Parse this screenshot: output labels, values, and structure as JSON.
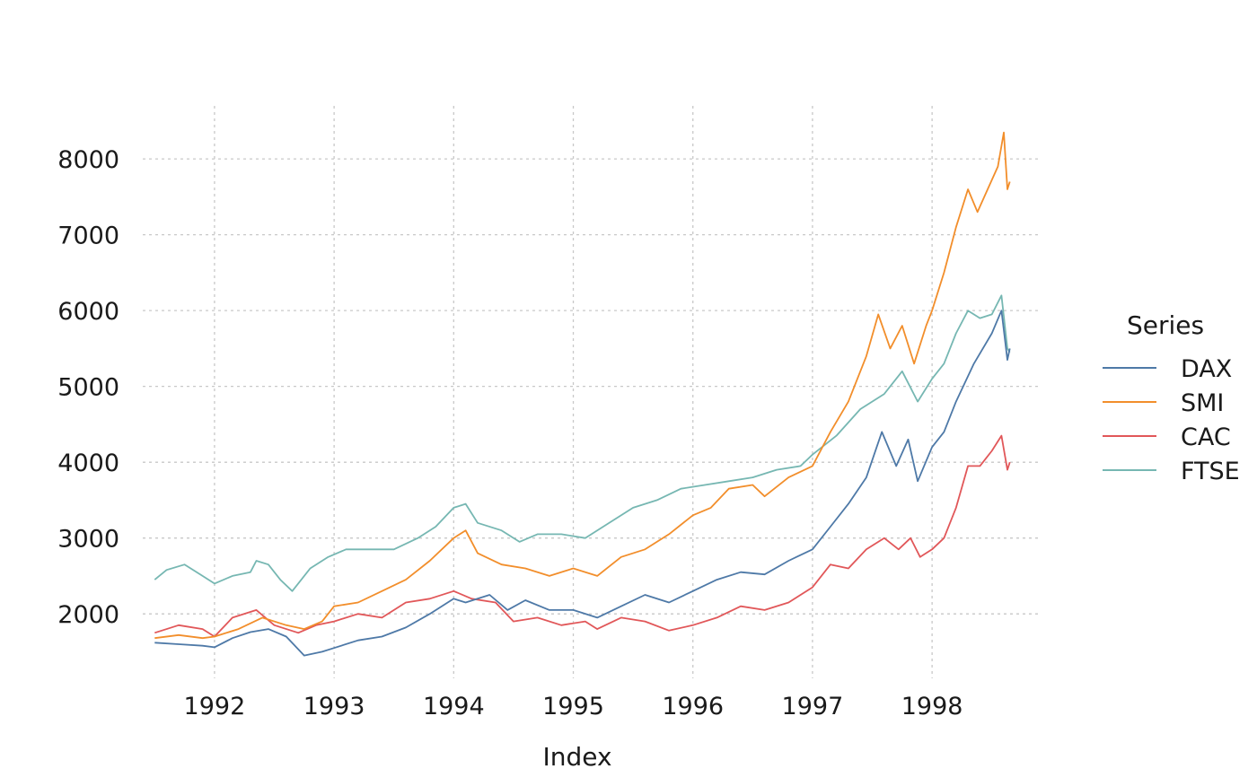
{
  "chart_data": {
    "type": "line",
    "title": "",
    "xlabel": "Index",
    "ylabel": "",
    "xlim": [
      1991.4,
      1998.9
    ],
    "ylim": [
      1150,
      8700
    ],
    "x_ticks": [
      1992,
      1993,
      1994,
      1995,
      1996,
      1997,
      1998
    ],
    "x_tick_labels": [
      "1992",
      "1993",
      "1994",
      "1995",
      "1996",
      "1997",
      "1998"
    ],
    "y_ticks": [
      2000,
      3000,
      4000,
      5000,
      6000,
      7000,
      8000
    ],
    "y_tick_labels": [
      "2000",
      "3000",
      "4000",
      "5000",
      "6000",
      "7000",
      "8000"
    ],
    "grid": true,
    "legend": {
      "title": "Series",
      "position": "right"
    },
    "series": [
      {
        "name": "DAX",
        "color": "#4e79a7",
        "points": [
          [
            1991.5,
            1620
          ],
          [
            1991.7,
            1600
          ],
          [
            1991.9,
            1580
          ],
          [
            1992.0,
            1560
          ],
          [
            1992.15,
            1680
          ],
          [
            1992.3,
            1760
          ],
          [
            1992.45,
            1800
          ],
          [
            1992.6,
            1700
          ],
          [
            1992.75,
            1450
          ],
          [
            1992.9,
            1500
          ],
          [
            1993.0,
            1550
          ],
          [
            1993.2,
            1650
          ],
          [
            1993.4,
            1700
          ],
          [
            1993.6,
            1820
          ],
          [
            1993.8,
            2000
          ],
          [
            1994.0,
            2200
          ],
          [
            1994.1,
            2150
          ],
          [
            1994.3,
            2250
          ],
          [
            1994.45,
            2050
          ],
          [
            1994.6,
            2180
          ],
          [
            1994.8,
            2050
          ],
          [
            1995.0,
            2050
          ],
          [
            1995.2,
            1950
          ],
          [
            1995.4,
            2100
          ],
          [
            1995.6,
            2250
          ],
          [
            1995.8,
            2150
          ],
          [
            1996.0,
            2300
          ],
          [
            1996.2,
            2450
          ],
          [
            1996.4,
            2550
          ],
          [
            1996.6,
            2520
          ],
          [
            1996.8,
            2700
          ],
          [
            1997.0,
            2850
          ],
          [
            1997.15,
            3150
          ],
          [
            1997.3,
            3450
          ],
          [
            1997.45,
            3800
          ],
          [
            1997.58,
            4400
          ],
          [
            1997.7,
            3950
          ],
          [
            1997.8,
            4300
          ],
          [
            1997.88,
            3750
          ],
          [
            1998.0,
            4200
          ],
          [
            1998.1,
            4400
          ],
          [
            1998.2,
            4800
          ],
          [
            1998.35,
            5300
          ],
          [
            1998.5,
            5700
          ],
          [
            1998.58,
            6000
          ],
          [
            1998.63,
            5350
          ],
          [
            1998.65,
            5500
          ]
        ]
      },
      {
        "name": "SMI",
        "color": "#f28e2b",
        "points": [
          [
            1991.5,
            1680
          ],
          [
            1991.7,
            1720
          ],
          [
            1991.9,
            1680
          ],
          [
            1992.0,
            1700
          ],
          [
            1992.2,
            1800
          ],
          [
            1992.4,
            1950
          ],
          [
            1992.6,
            1850
          ],
          [
            1992.75,
            1800
          ],
          [
            1992.9,
            1900
          ],
          [
            1993.0,
            2100
          ],
          [
            1993.2,
            2150
          ],
          [
            1993.4,
            2300
          ],
          [
            1993.6,
            2450
          ],
          [
            1993.8,
            2700
          ],
          [
            1994.0,
            3000
          ],
          [
            1994.1,
            3100
          ],
          [
            1994.2,
            2800
          ],
          [
            1994.4,
            2650
          ],
          [
            1994.6,
            2600
          ],
          [
            1994.8,
            2500
          ],
          [
            1995.0,
            2600
          ],
          [
            1995.2,
            2500
          ],
          [
            1995.4,
            2750
          ],
          [
            1995.6,
            2850
          ],
          [
            1995.8,
            3050
          ],
          [
            1996.0,
            3300
          ],
          [
            1996.15,
            3400
          ],
          [
            1996.3,
            3650
          ],
          [
            1996.5,
            3700
          ],
          [
            1996.6,
            3550
          ],
          [
            1996.8,
            3800
          ],
          [
            1997.0,
            3950
          ],
          [
            1997.15,
            4400
          ],
          [
            1997.3,
            4800
          ],
          [
            1997.45,
            5400
          ],
          [
            1997.55,
            5950
          ],
          [
            1997.65,
            5500
          ],
          [
            1997.75,
            5800
          ],
          [
            1997.85,
            5300
          ],
          [
            1997.95,
            5800
          ],
          [
            1998.0,
            6000
          ],
          [
            1998.1,
            6500
          ],
          [
            1998.2,
            7100
          ],
          [
            1998.3,
            7600
          ],
          [
            1998.38,
            7300
          ],
          [
            1998.45,
            7550
          ],
          [
            1998.55,
            7900
          ],
          [
            1998.6,
            8350
          ],
          [
            1998.63,
            7600
          ],
          [
            1998.65,
            7700
          ]
        ]
      },
      {
        "name": "CAC",
        "color": "#e15759",
        "points": [
          [
            1991.5,
            1750
          ],
          [
            1991.7,
            1850
          ],
          [
            1991.9,
            1800
          ],
          [
            1992.0,
            1700
          ],
          [
            1992.15,
            1950
          ],
          [
            1992.35,
            2050
          ],
          [
            1992.5,
            1850
          ],
          [
            1992.7,
            1750
          ],
          [
            1992.85,
            1850
          ],
          [
            1993.0,
            1900
          ],
          [
            1993.2,
            2000
          ],
          [
            1993.4,
            1950
          ],
          [
            1993.6,
            2150
          ],
          [
            1993.8,
            2200
          ],
          [
            1994.0,
            2300
          ],
          [
            1994.15,
            2200
          ],
          [
            1994.35,
            2150
          ],
          [
            1994.5,
            1900
          ],
          [
            1994.7,
            1950
          ],
          [
            1994.9,
            1850
          ],
          [
            1995.1,
            1900
          ],
          [
            1995.2,
            1800
          ],
          [
            1995.4,
            1950
          ],
          [
            1995.6,
            1900
          ],
          [
            1995.8,
            1780
          ],
          [
            1996.0,
            1850
          ],
          [
            1996.2,
            1950
          ],
          [
            1996.4,
            2100
          ],
          [
            1996.6,
            2050
          ],
          [
            1996.8,
            2150
          ],
          [
            1997.0,
            2350
          ],
          [
            1997.15,
            2650
          ],
          [
            1997.3,
            2600
          ],
          [
            1997.45,
            2850
          ],
          [
            1997.6,
            3000
          ],
          [
            1997.72,
            2850
          ],
          [
            1997.82,
            3000
          ],
          [
            1997.9,
            2750
          ],
          [
            1998.0,
            2850
          ],
          [
            1998.1,
            3000
          ],
          [
            1998.2,
            3400
          ],
          [
            1998.3,
            3950
          ],
          [
            1998.4,
            3950
          ],
          [
            1998.5,
            4150
          ],
          [
            1998.58,
            4350
          ],
          [
            1998.63,
            3900
          ],
          [
            1998.65,
            4000
          ]
        ]
      },
      {
        "name": "FTSE",
        "color": "#76b7b2",
        "points": [
          [
            1991.5,
            2450
          ],
          [
            1991.6,
            2580
          ],
          [
            1991.75,
            2650
          ],
          [
            1991.9,
            2500
          ],
          [
            1992.0,
            2400
          ],
          [
            1992.15,
            2500
          ],
          [
            1992.3,
            2550
          ],
          [
            1992.35,
            2700
          ],
          [
            1992.45,
            2650
          ],
          [
            1992.55,
            2450
          ],
          [
            1992.65,
            2300
          ],
          [
            1992.8,
            2600
          ],
          [
            1992.95,
            2750
          ],
          [
            1993.1,
            2850
          ],
          [
            1993.3,
            2850
          ],
          [
            1993.5,
            2850
          ],
          [
            1993.7,
            3000
          ],
          [
            1993.85,
            3150
          ],
          [
            1994.0,
            3400
          ],
          [
            1994.1,
            3450
          ],
          [
            1994.2,
            3200
          ],
          [
            1994.4,
            3100
          ],
          [
            1994.55,
            2950
          ],
          [
            1994.7,
            3050
          ],
          [
            1994.9,
            3050
          ],
          [
            1995.1,
            3000
          ],
          [
            1995.3,
            3200
          ],
          [
            1995.5,
            3400
          ],
          [
            1995.7,
            3500
          ],
          [
            1995.9,
            3650
          ],
          [
            1996.1,
            3700
          ],
          [
            1996.3,
            3750
          ],
          [
            1996.5,
            3800
          ],
          [
            1996.7,
            3900
          ],
          [
            1996.9,
            3950
          ],
          [
            1997.0,
            4100
          ],
          [
            1997.2,
            4350
          ],
          [
            1997.4,
            4700
          ],
          [
            1997.6,
            4900
          ],
          [
            1997.75,
            5200
          ],
          [
            1997.88,
            4800
          ],
          [
            1998.0,
            5100
          ],
          [
            1998.1,
            5300
          ],
          [
            1998.2,
            5700
          ],
          [
            1998.3,
            6000
          ],
          [
            1998.4,
            5900
          ],
          [
            1998.5,
            5950
          ],
          [
            1998.58,
            6200
          ],
          [
            1998.63,
            5500
          ],
          [
            1998.65,
            5450
          ]
        ]
      }
    ]
  }
}
